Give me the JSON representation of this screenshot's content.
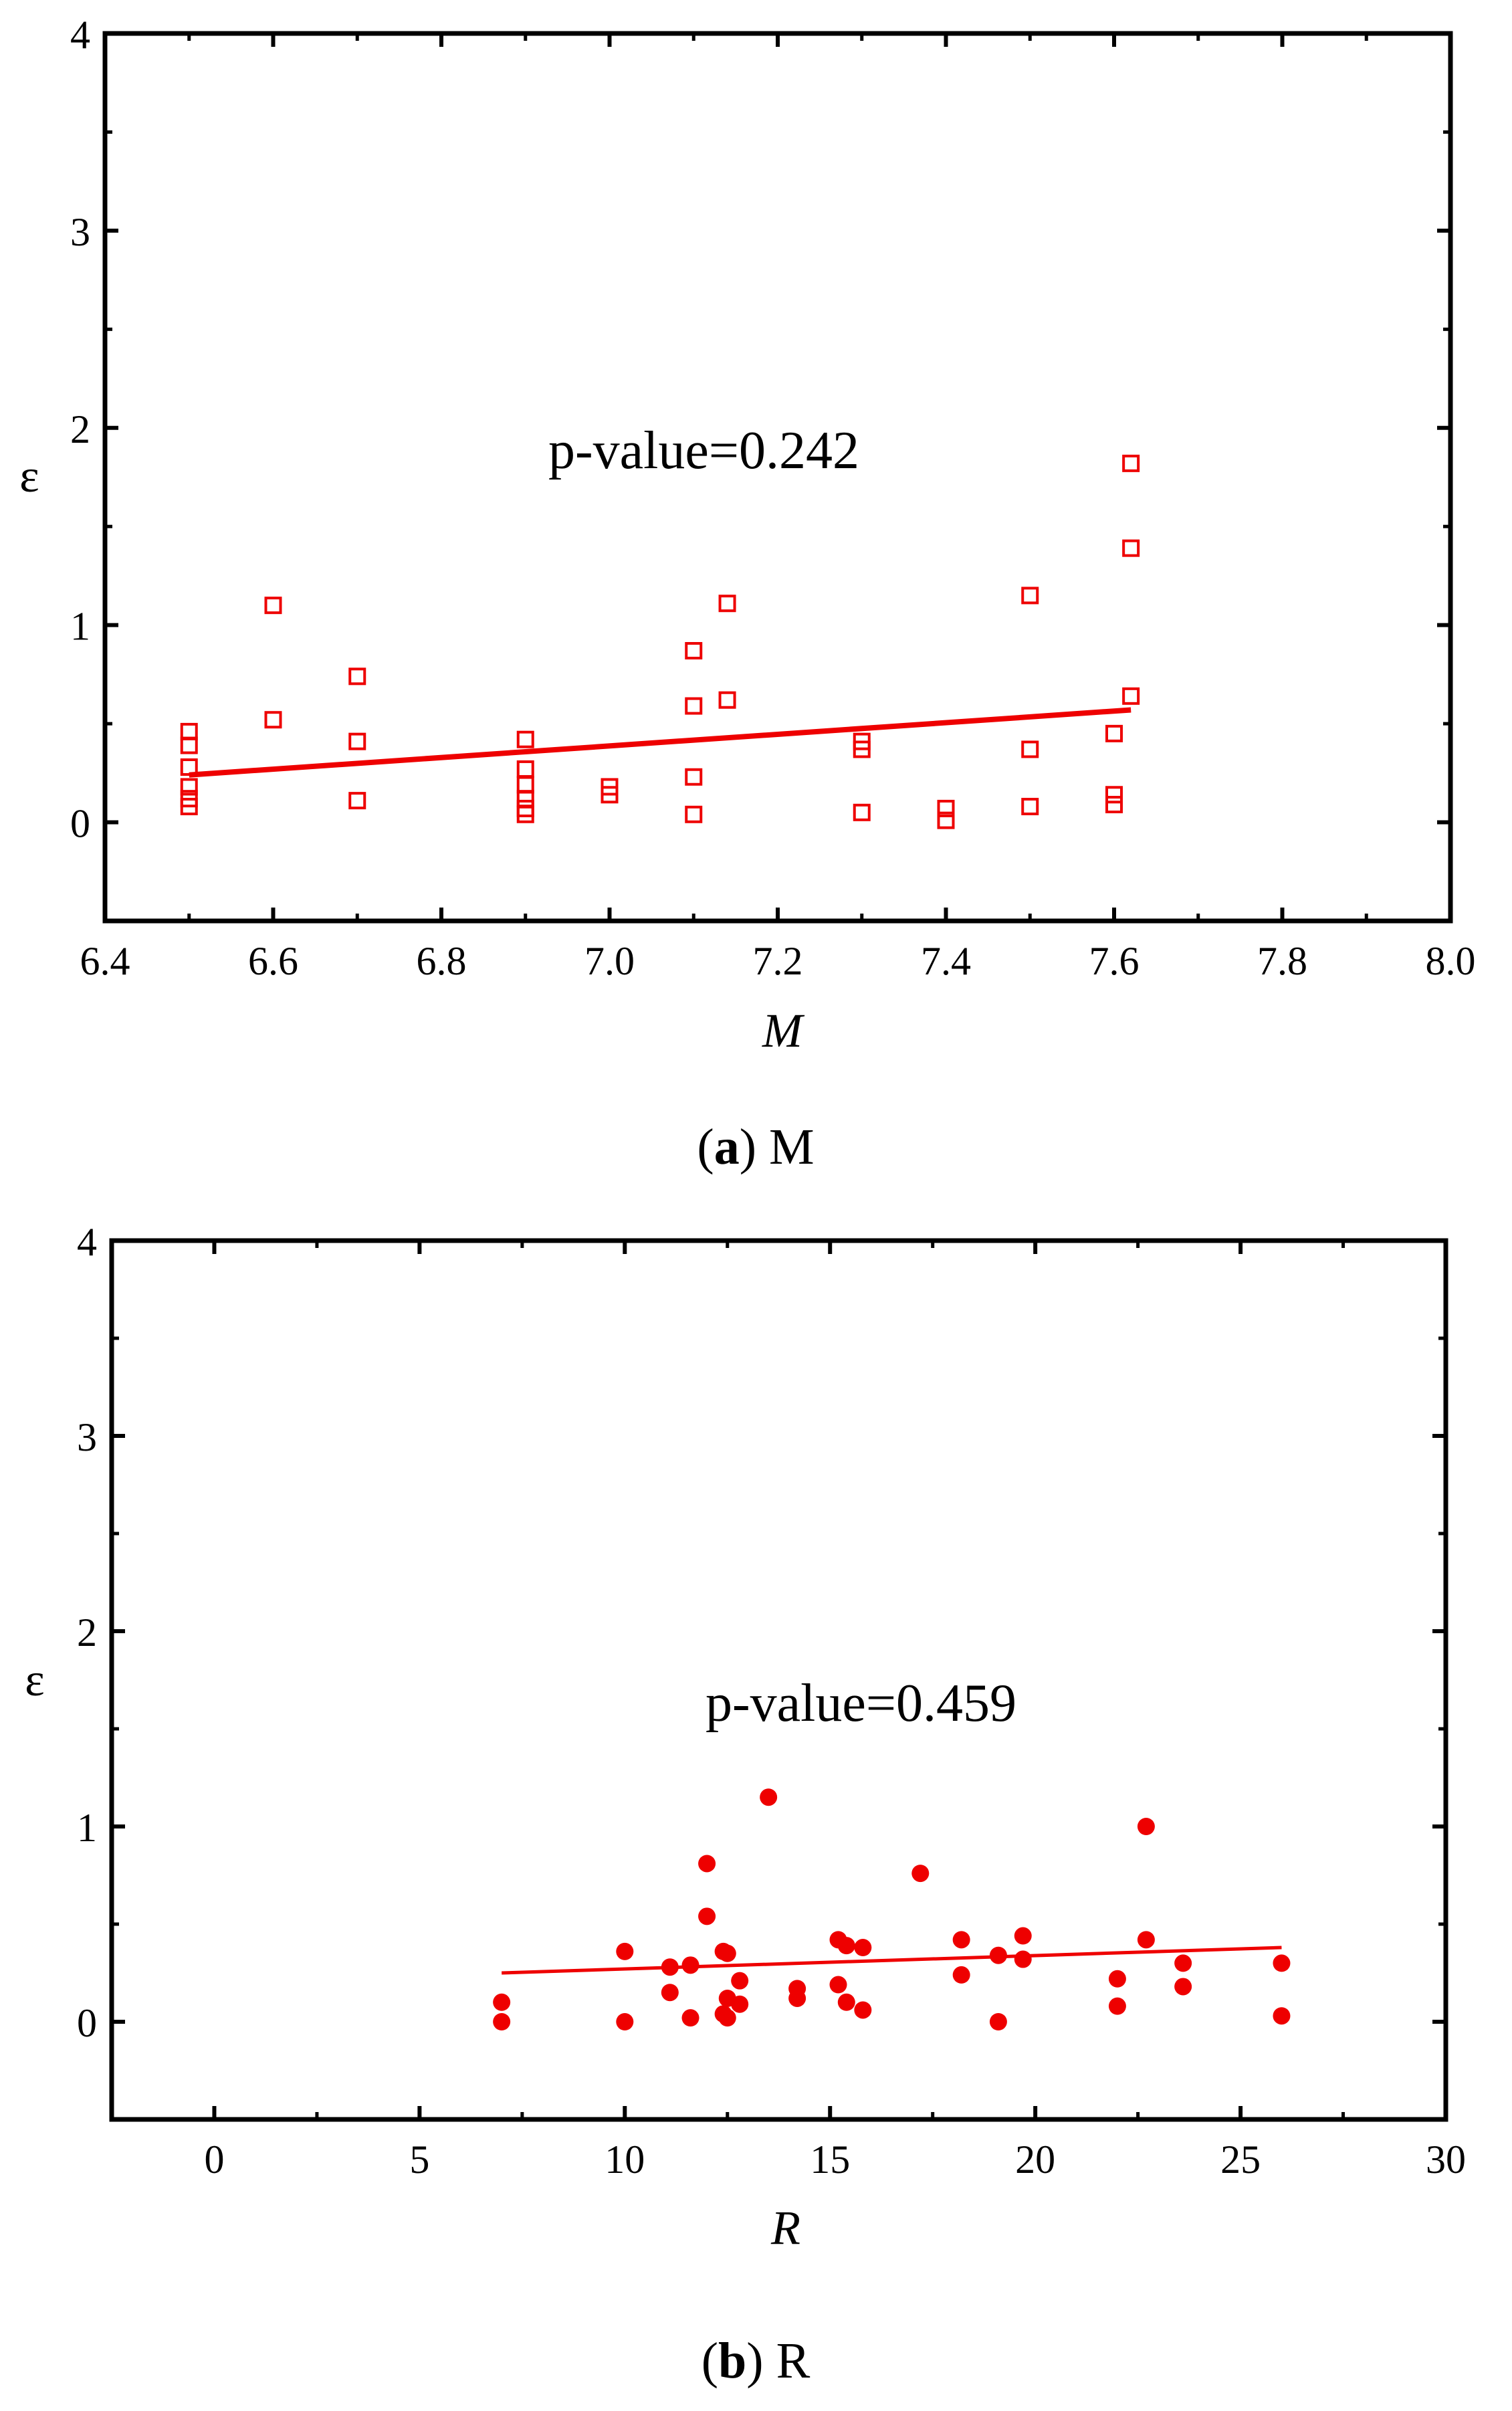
{
  "figure": {
    "colors": {
      "marker": "#ee0000",
      "axis": "#000000",
      "background": "#ffffff"
    }
  },
  "chart_data": [
    {
      "type": "scatter",
      "marker": "open-square",
      "caption_letter": "a",
      "caption_text": "M",
      "xlabel": "M",
      "ylabel": "ε",
      "xlim": [
        6.4,
        8.0
      ],
      "ylim": [
        -0.5,
        4
      ],
      "xticks": [
        "6.4",
        "6.6",
        "6.8",
        "7.0",
        "7.2",
        "7.4",
        "7.6",
        "7.8",
        "8.0"
      ],
      "yticks": [
        "0",
        "1",
        "2",
        "3",
        "4"
      ],
      "annotation": "p-value=0.242",
      "fit_line": {
        "x": [
          6.5,
          7.62
        ],
        "y": [
          0.24,
          0.57
        ]
      },
      "points": [
        [
          6.5,
          0.46
        ],
        [
          6.5,
          0.39
        ],
        [
          6.5,
          0.28
        ],
        [
          6.5,
          0.18
        ],
        [
          6.5,
          0.12
        ],
        [
          6.5,
          0.08
        ],
        [
          6.6,
          1.1
        ],
        [
          6.6,
          0.52
        ],
        [
          6.7,
          0.74
        ],
        [
          6.7,
          0.41
        ],
        [
          6.7,
          0.11
        ],
        [
          6.9,
          0.42
        ],
        [
          6.9,
          0.27
        ],
        [
          6.9,
          0.19
        ],
        [
          6.9,
          0.12
        ],
        [
          6.9,
          0.07
        ],
        [
          6.9,
          0.04
        ],
        [
          7.0,
          0.18
        ],
        [
          7.0,
          0.14
        ],
        [
          7.1,
          0.87
        ],
        [
          7.1,
          0.59
        ],
        [
          7.1,
          0.23
        ],
        [
          7.1,
          0.04
        ],
        [
          7.14,
          1.11
        ],
        [
          7.14,
          0.62
        ],
        [
          7.3,
          0.41
        ],
        [
          7.3,
          0.37
        ],
        [
          7.3,
          0.05
        ],
        [
          7.4,
          0.07
        ],
        [
          7.4,
          0.01
        ],
        [
          7.5,
          1.15
        ],
        [
          7.5,
          0.37
        ],
        [
          7.5,
          0.08
        ],
        [
          7.6,
          0.45
        ],
        [
          7.6,
          0.14
        ],
        [
          7.6,
          0.09
        ],
        [
          7.62,
          1.82
        ],
        [
          7.62,
          1.39
        ],
        [
          7.62,
          0.64
        ]
      ]
    },
    {
      "type": "scatter",
      "marker": "filled-circle",
      "caption_letter": "b",
      "caption_text": "R",
      "xlabel": "R",
      "ylabel": "ε",
      "xlim": [
        -2.5,
        30
      ],
      "ylim": [
        -0.5,
        4
      ],
      "xticks": [
        "0",
        "5",
        "10",
        "15",
        "20",
        "25",
        "30"
      ],
      "yticks": [
        "0",
        "1",
        "2",
        "3",
        "4"
      ],
      "annotation": "p-value=0.459",
      "fit_line": {
        "x": [
          7,
          26
        ],
        "y": [
          0.25,
          0.38
        ]
      },
      "points": [
        [
          7.0,
          0.1
        ],
        [
          7.0,
          0.0
        ],
        [
          10.0,
          0.36
        ],
        [
          10.0,
          0.0
        ],
        [
          11.1,
          0.28
        ],
        [
          11.1,
          0.15
        ],
        [
          11.6,
          0.29
        ],
        [
          11.6,
          0.02
        ],
        [
          12.0,
          0.81
        ],
        [
          12.0,
          0.54
        ],
        [
          12.4,
          0.36
        ],
        [
          12.4,
          0.04
        ],
        [
          12.5,
          0.35
        ],
        [
          12.5,
          0.12
        ],
        [
          12.5,
          0.02
        ],
        [
          12.8,
          0.21
        ],
        [
          12.8,
          0.09
        ],
        [
          13.5,
          1.15
        ],
        [
          14.2,
          0.17
        ],
        [
          14.2,
          0.12
        ],
        [
          15.2,
          0.42
        ],
        [
          15.2,
          0.19
        ],
        [
          15.4,
          0.39
        ],
        [
          15.4,
          0.1
        ],
        [
          15.8,
          0.38
        ],
        [
          15.8,
          0.06
        ],
        [
          17.2,
          0.76
        ],
        [
          18.2,
          0.42
        ],
        [
          18.2,
          0.24
        ],
        [
          19.1,
          0.34
        ],
        [
          19.1,
          0.0
        ],
        [
          19.7,
          0.44
        ],
        [
          19.7,
          0.32
        ],
        [
          22.0,
          0.22
        ],
        [
          22.0,
          0.08
        ],
        [
          22.7,
          1.0
        ],
        [
          22.7,
          0.42
        ],
        [
          23.6,
          0.3
        ],
        [
          23.6,
          0.18
        ],
        [
          26.0,
          0.3
        ],
        [
          26.0,
          0.03
        ]
      ]
    }
  ]
}
